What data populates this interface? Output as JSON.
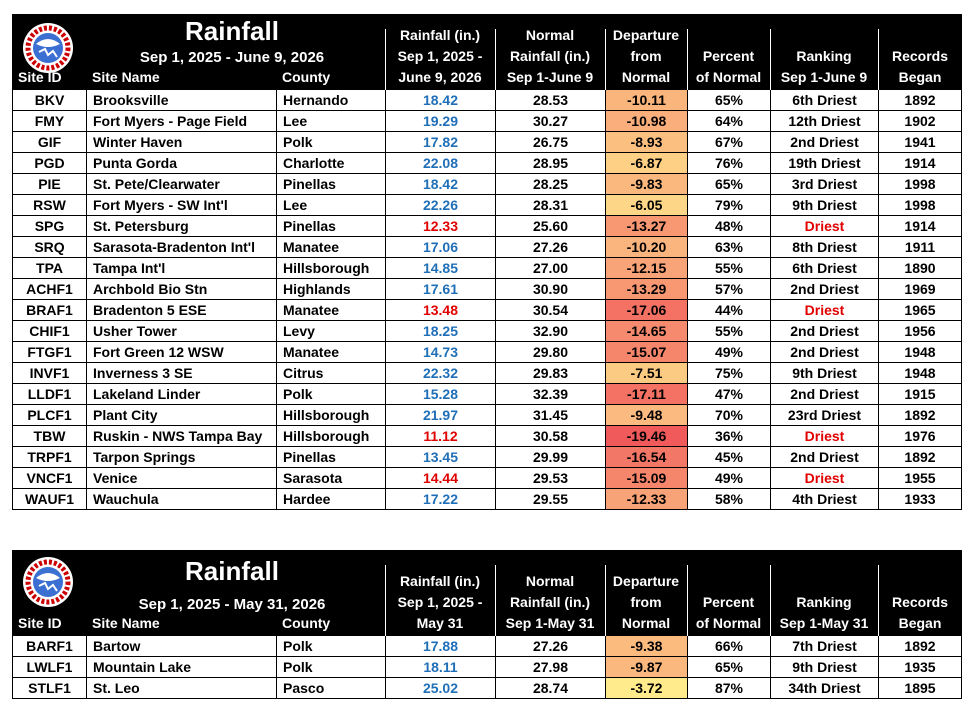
{
  "tables": [
    {
      "title": "Rainfall",
      "subtitle": "Sep 1, 2025 - June 9, 2026",
      "columns": [
        [
          "Site ID"
        ],
        [
          "Site Name"
        ],
        [
          "County"
        ],
        [
          "Rainfall (in.)",
          "Sep 1, 2025 -",
          "June 9, 2026"
        ],
        [
          "Normal",
          "Rainfall (in.)",
          "Sep 1-June 9"
        ],
        [
          "Departure",
          "from",
          "Normal"
        ],
        [
          "Percent",
          "of Normal"
        ],
        [
          "Ranking",
          "Sep 1-June 9"
        ],
        [
          "Records",
          "Began"
        ]
      ],
      "rows": [
        [
          "BKV",
          "Brooksville",
          "Hernando",
          "18.42",
          "28.53",
          "-10.11",
          "65%",
          "6th Driest",
          "1892"
        ],
        [
          "FMY",
          "Fort Myers - Page Field",
          "Lee",
          "19.29",
          "30.27",
          "-10.98",
          "64%",
          "12th Driest",
          "1902"
        ],
        [
          "GIF",
          "Winter Haven",
          "Polk",
          "17.82",
          "26.75",
          "-8.93",
          "67%",
          "2nd Driest",
          "1941"
        ],
        [
          "PGD",
          "Punta Gorda",
          "Charlotte",
          "22.08",
          "28.95",
          "-6.87",
          "76%",
          "19th Driest",
          "1914"
        ],
        [
          "PIE",
          "St. Pete/Clearwater",
          "Pinellas",
          "18.42",
          "28.25",
          "-9.83",
          "65%",
          "3rd Driest",
          "1998"
        ],
        [
          "RSW",
          "Fort Myers - SW Int'l",
          "Lee",
          "22.26",
          "28.31",
          "-6.05",
          "79%",
          "9th Driest",
          "1998"
        ],
        [
          "SPG",
          "St. Petersburg",
          "Pinellas",
          "12.33",
          "25.60",
          "-13.27",
          "48%",
          "Driest",
          "1914"
        ],
        [
          "SRQ",
          "Sarasota-Bradenton Int'l",
          "Manatee",
          "17.06",
          "27.26",
          "-10.20",
          "63%",
          "8th Driest",
          "1911"
        ],
        [
          "TPA",
          "Tampa Int'l",
          "Hillsborough",
          "14.85",
          "27.00",
          "-12.15",
          "55%",
          "6th Driest",
          "1890"
        ],
        [
          "ACHF1",
          "Archbold Bio Stn",
          "Highlands",
          "17.61",
          "30.90",
          "-13.29",
          "57%",
          "2nd Driest",
          "1969"
        ],
        [
          "BRAF1",
          "Bradenton 5 ESE",
          "Manatee",
          "13.48",
          "30.54",
          "-17.06",
          "44%",
          "Driest",
          "1965"
        ],
        [
          "CHIF1",
          "Usher Tower",
          "Levy",
          "18.25",
          "32.90",
          "-14.65",
          "55%",
          "2nd Driest",
          "1956"
        ],
        [
          "FTGF1",
          "Fort Green 12 WSW",
          "Manatee",
          "14.73",
          "29.80",
          "-15.07",
          "49%",
          "2nd Driest",
          "1948"
        ],
        [
          "INVF1",
          "Inverness 3 SE",
          "Citrus",
          "22.32",
          "29.83",
          "-7.51",
          "75%",
          "9th Driest",
          "1948"
        ],
        [
          "LLDF1",
          "Lakeland Linder",
          "Polk",
          "15.28",
          "32.39",
          "-17.11",
          "47%",
          "2nd Driest",
          "1915"
        ],
        [
          "PLCF1",
          "Plant City",
          "Hillsborough",
          "21.97",
          "31.45",
          "-9.48",
          "70%",
          "23rd Driest",
          "1892"
        ],
        [
          "TBW",
          "Ruskin - NWS Tampa Bay",
          "Hillsborough",
          "11.12",
          "30.58",
          "-19.46",
          "36%",
          "Driest",
          "1976"
        ],
        [
          "TRPF1",
          "Tarpon Springs",
          "Pinellas",
          "13.45",
          "29.99",
          "-16.54",
          "45%",
          "2nd Driest",
          "1892"
        ],
        [
          "VNCF1",
          "Venice",
          "Sarasota",
          "14.44",
          "29.53",
          "-15.09",
          "49%",
          "Driest",
          "1955"
        ],
        [
          "WAUF1",
          "Wauchula",
          "Hardee",
          "17.22",
          "29.55",
          "-12.33",
          "58%",
          "4th Driest",
          "1933"
        ]
      ],
      "rainfall_colors": [
        "#1f6fb8",
        "#1f6fb8",
        "#1f6fb8",
        "#1f6fb8",
        "#1f6fb8",
        "#1f6fb8",
        "#e00000",
        "#1f6fb8",
        "#1f6fb8",
        "#1f6fb8",
        "#e00000",
        "#1f6fb8",
        "#1f6fb8",
        "#1f6fb8",
        "#1f6fb8",
        "#1f6fb8",
        "#e00000",
        "#1f6fb8",
        "#e00000",
        "#1f6fb8"
      ],
      "ranking_colors": [
        "#000",
        "#000",
        "#000",
        "#000",
        "#000",
        "#000",
        "#e00000",
        "#000",
        "#000",
        "#000",
        "#e00000",
        "#000",
        "#000",
        "#000",
        "#000",
        "#000",
        "#e00000",
        "#000",
        "#e00000",
        "#000"
      ]
    },
    {
      "title": "Rainfall",
      "subtitle": "Sep 1, 2025 - May 31, 2026",
      "columns": [
        [
          "Site ID"
        ],
        [
          "Site Name"
        ],
        [
          "County"
        ],
        [
          "Rainfall (in.)",
          "Sep 1, 2025 -",
          "May 31"
        ],
        [
          "Normal",
          "Rainfall (in.)",
          "Sep 1-May 31"
        ],
        [
          "Departure",
          "from",
          "Normal"
        ],
        [
          "Percent",
          "of Normal"
        ],
        [
          "Ranking",
          "Sep 1-May 31"
        ],
        [
          "Records",
          "Began"
        ]
      ],
      "rows": [
        [
          "BARF1",
          "Bartow",
          "Polk",
          "17.88",
          "27.26",
          "-9.38",
          "66%",
          "7th Driest",
          "1892"
        ],
        [
          "LWLF1",
          "Mountain Lake",
          "Polk",
          "18.11",
          "27.98",
          "-9.87",
          "65%",
          "9th Driest",
          "1935"
        ],
        [
          "STLF1",
          "St. Leo",
          "Pasco",
          "25.02",
          "28.74",
          "-3.72",
          "87%",
          "34th Driest",
          "1895"
        ]
      ],
      "rainfall_colors": [
        "#1f6fb8",
        "#1f6fb8",
        "#1f6fb8"
      ],
      "ranking_colors": [
        "#000",
        "#000",
        "#000"
      ]
    }
  ],
  "departure_colors": [
    "#ffea8c",
    "#f9a97a",
    "#f05a5a"
  ]
}
